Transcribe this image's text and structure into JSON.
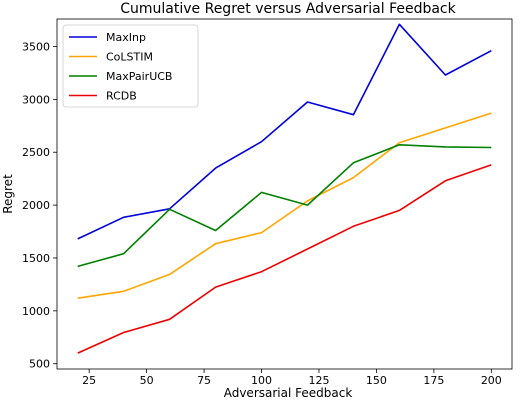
{
  "chart_data": {
    "type": "line",
    "title": "Cumulative Regret versus Adversarial Feedback",
    "xlabel": "Adversarial Feedback",
    "ylabel": "Regret",
    "x": [
      20,
      40,
      60,
      80,
      100,
      120,
      140,
      160,
      180,
      200
    ],
    "xlim": [
      11,
      209
    ],
    "ylim": [
      450,
      3760
    ],
    "xticks": [
      25,
      50,
      75,
      100,
      125,
      150,
      175,
      200
    ],
    "yticks": [
      500,
      1000,
      1500,
      2000,
      2500,
      3000,
      3500
    ],
    "grid": false,
    "legend_position": "top-left",
    "series": [
      {
        "name": "MaxInp",
        "color": "#0000dd",
        "values": [
          1680,
          1885,
          1965,
          2350,
          2600,
          2975,
          2855,
          3710,
          3230,
          3460
        ]
      },
      {
        "name": "CoLSTIM",
        "color": "#ffa500",
        "values": [
          1120,
          1185,
          1345,
          1635,
          1740,
          2040,
          2260,
          2590,
          2730,
          2870
        ]
      },
      {
        "name": "MaxPairUCB",
        "color": "#008000",
        "values": [
          1420,
          1540,
          1960,
          1760,
          2120,
          2000,
          2400,
          2570,
          2550,
          2545
        ]
      },
      {
        "name": "RCDB",
        "color": "#ee0000",
        "values": [
          600,
          795,
          920,
          1225,
          1370,
          1585,
          1800,
          1950,
          2230,
          2380
        ]
      }
    ]
  }
}
